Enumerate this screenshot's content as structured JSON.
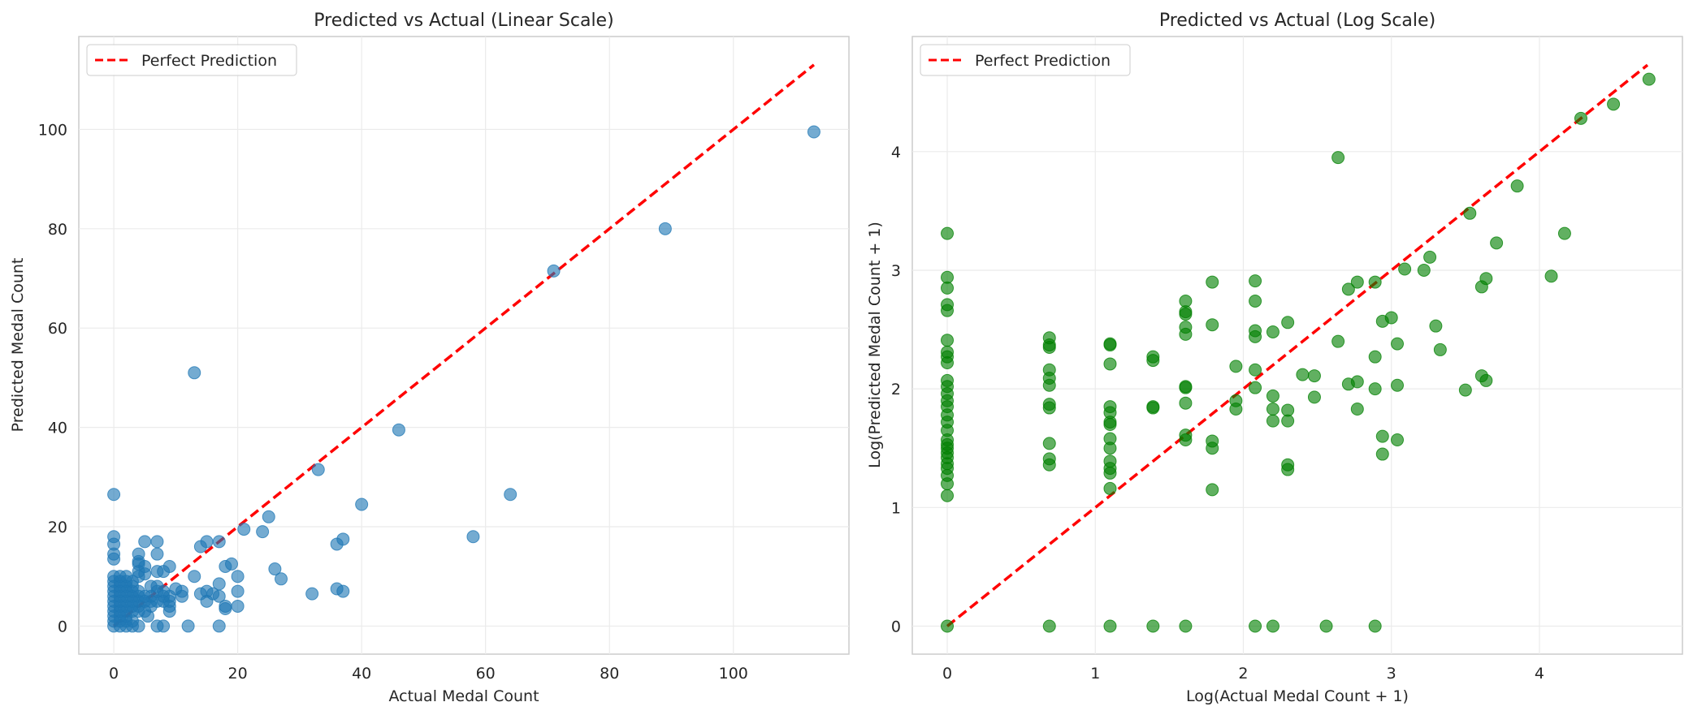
{
  "chart_data": [
    {
      "type": "scatter",
      "title": "Predicted vs Actual (Linear Scale)",
      "xlabel": "Actual Medal Count",
      "ylabel": "Predicted Medal Count",
      "xlim": [
        -5.65,
        118.65
      ],
      "ylim": [
        -5.65,
        118.7
      ],
      "xticks": [
        0,
        20,
        40,
        60,
        80,
        100
      ],
      "yticks": [
        0,
        20,
        40,
        60,
        80,
        100
      ],
      "grid": true,
      "legend": "top-left",
      "reference_line": {
        "name": "Perfect Prediction",
        "x": [
          0,
          113
        ],
        "y": [
          0,
          113
        ],
        "color": "#ff0000",
        "style": "dashed"
      },
      "point_color": "#1f77b4",
      "points": [
        [
          0,
          0
        ],
        [
          0,
          1
        ],
        [
          0,
          2
        ],
        [
          0,
          3
        ],
        [
          0,
          4
        ],
        [
          0,
          5
        ],
        [
          0,
          6
        ],
        [
          0,
          7
        ],
        [
          0,
          8
        ],
        [
          0,
          9
        ],
        [
          0,
          10
        ],
        [
          0,
          13.5
        ],
        [
          0,
          14.5
        ],
        [
          0,
          16.5
        ],
        [
          0,
          18
        ],
        [
          0,
          26.5
        ],
        [
          1,
          0
        ],
        [
          1,
          1
        ],
        [
          1,
          2
        ],
        [
          1,
          3
        ],
        [
          1,
          4
        ],
        [
          1,
          5
        ],
        [
          1,
          6
        ],
        [
          1,
          7
        ],
        [
          1,
          8
        ],
        [
          1,
          9
        ],
        [
          1,
          10
        ],
        [
          2,
          0
        ],
        [
          2,
          1
        ],
        [
          2,
          2
        ],
        [
          2,
          3
        ],
        [
          2,
          4
        ],
        [
          2,
          5
        ],
        [
          2,
          6
        ],
        [
          2,
          7
        ],
        [
          2,
          8
        ],
        [
          2,
          9
        ],
        [
          2,
          10
        ],
        [
          3,
          0
        ],
        [
          3,
          1
        ],
        [
          3,
          3
        ],
        [
          3,
          4
        ],
        [
          3,
          5
        ],
        [
          3,
          6
        ],
        [
          3,
          7
        ],
        [
          3,
          8
        ],
        [
          3,
          9
        ],
        [
          4,
          0
        ],
        [
          4,
          3
        ],
        [
          4,
          4
        ],
        [
          4,
          5
        ],
        [
          4,
          6
        ],
        [
          4,
          7
        ],
        [
          4,
          10
        ],
        [
          4,
          11
        ],
        [
          4,
          12.5
        ],
        [
          4,
          13
        ],
        [
          4,
          14.5
        ],
        [
          5,
          3
        ],
        [
          5,
          5
        ],
        [
          5,
          6
        ],
        [
          5,
          10.5
        ],
        [
          5,
          12
        ],
        [
          5,
          17
        ],
        [
          5.5,
          2
        ],
        [
          6,
          4
        ],
        [
          6,
          5
        ],
        [
          6,
          6
        ],
        [
          6,
          8
        ],
        [
          7,
          0
        ],
        [
          7,
          5
        ],
        [
          7,
          7
        ],
        [
          7,
          8
        ],
        [
          7,
          11
        ],
        [
          7,
          14.5
        ],
        [
          7,
          17
        ],
        [
          8,
          0
        ],
        [
          8,
          5
        ],
        [
          8,
          6
        ],
        [
          8,
          7
        ],
        [
          8,
          11
        ],
        [
          9,
          3
        ],
        [
          9,
          4
        ],
        [
          9,
          5
        ],
        [
          9,
          6
        ],
        [
          9,
          12
        ],
        [
          10,
          7.5
        ],
        [
          11,
          6
        ],
        [
          11,
          7
        ],
        [
          12,
          0
        ],
        [
          13,
          10
        ],
        [
          13,
          51
        ],
        [
          14,
          6.5
        ],
        [
          14,
          16
        ],
        [
          15,
          5
        ],
        [
          15,
          7
        ],
        [
          15,
          17
        ],
        [
          16,
          6.5
        ],
        [
          17,
          0
        ],
        [
          17,
          6
        ],
        [
          17,
          8.5
        ],
        [
          17,
          17
        ],
        [
          18,
          3.5
        ],
        [
          18,
          4
        ],
        [
          18,
          12
        ],
        [
          19,
          12.5
        ],
        [
          20,
          4
        ],
        [
          20,
          7
        ],
        [
          20,
          10
        ],
        [
          21,
          19.5
        ],
        [
          24,
          19
        ],
        [
          25,
          22
        ],
        [
          26,
          11.5
        ],
        [
          27,
          9.5
        ],
        [
          32,
          6.5
        ],
        [
          33,
          31.5
        ],
        [
          36,
          7.5
        ],
        [
          36,
          16.5
        ],
        [
          37,
          7
        ],
        [
          37,
          17.5
        ],
        [
          40,
          24.5
        ],
        [
          46,
          39.5
        ],
        [
          58,
          18
        ],
        [
          64,
          26.5
        ],
        [
          71,
          71.5
        ],
        [
          89,
          80
        ],
        [
          113,
          99.5
        ]
      ]
    },
    {
      "type": "scatter",
      "title": "Predicted vs Actual (Log Scale)",
      "xlabel": "Log(Actual Medal Count + 1)",
      "ylabel": "Log(Predicted Medal Count + 1)",
      "xlim": [
        -0.236,
        4.966
      ],
      "ylim": [
        -0.236,
        4.97
      ],
      "xticks": [
        0,
        1,
        2,
        3,
        4
      ],
      "yticks": [
        0,
        1,
        2,
        3,
        4
      ],
      "grid": true,
      "legend": "top-left",
      "reference_line": {
        "name": "Perfect Prediction",
        "x": [
          0,
          4.73
        ],
        "y": [
          0,
          4.73
        ],
        "color": "#ff0000",
        "style": "dashed"
      },
      "point_color": "#008000",
      "points": [
        [
          0,
          0
        ],
        [
          0,
          1.1
        ],
        [
          0,
          1.2
        ],
        [
          0,
          1.27
        ],
        [
          0,
          1.33
        ],
        [
          0,
          1.37
        ],
        [
          0,
          1.42
        ],
        [
          0,
          1.46
        ],
        [
          0,
          1.5
        ],
        [
          0,
          1.53
        ],
        [
          0,
          1.57
        ],
        [
          0,
          1.65
        ],
        [
          0,
          1.72
        ],
        [
          0,
          1.78
        ],
        [
          0,
          1.85
        ],
        [
          0,
          1.9
        ],
        [
          0,
          1.96
        ],
        [
          0,
          2.02
        ],
        [
          0,
          2.07
        ],
        [
          0,
          2.22
        ],
        [
          0,
          2.27
        ],
        [
          0,
          2.31
        ],
        [
          0,
          2.41
        ],
        [
          0,
          2.66
        ],
        [
          0,
          2.71
        ],
        [
          0,
          2.85
        ],
        [
          0,
          2.94
        ],
        [
          0,
          3.31
        ],
        [
          0.69,
          0
        ],
        [
          0.69,
          1.36
        ],
        [
          0.69,
          1.41
        ],
        [
          0.69,
          1.54
        ],
        [
          0.69,
          1.84
        ],
        [
          0.69,
          1.87
        ],
        [
          0.69,
          2.03
        ],
        [
          0.69,
          2.09
        ],
        [
          0.69,
          2.16
        ],
        [
          0.69,
          2.35
        ],
        [
          0.69,
          2.37
        ],
        [
          0.69,
          2.43
        ],
        [
          1.1,
          0
        ],
        [
          1.1,
          1.16
        ],
        [
          1.1,
          1.29
        ],
        [
          1.1,
          1.33
        ],
        [
          1.1,
          1.39
        ],
        [
          1.1,
          1.5
        ],
        [
          1.1,
          1.58
        ],
        [
          1.1,
          1.7
        ],
        [
          1.1,
          1.72
        ],
        [
          1.1,
          1.8
        ],
        [
          1.1,
          1.85
        ],
        [
          1.1,
          2.21
        ],
        [
          1.1,
          2.37
        ],
        [
          1.1,
          2.38
        ],
        [
          1.39,
          0
        ],
        [
          1.39,
          1.84
        ],
        [
          1.39,
          1.85
        ],
        [
          1.39,
          2.24
        ],
        [
          1.39,
          2.27
        ],
        [
          1.61,
          0
        ],
        [
          1.61,
          1.57
        ],
        [
          1.61,
          1.61
        ],
        [
          1.61,
          1.88
        ],
        [
          1.61,
          2.01
        ],
        [
          1.61,
          2.02
        ],
        [
          1.61,
          2.46
        ],
        [
          1.61,
          2.52
        ],
        [
          1.61,
          2.63
        ],
        [
          1.61,
          2.65
        ],
        [
          1.61,
          2.74
        ],
        [
          1.79,
          1.15
        ],
        [
          1.79,
          1.5
        ],
        [
          1.79,
          1.56
        ],
        [
          1.79,
          2.54
        ],
        [
          1.79,
          2.9
        ],
        [
          1.95,
          1.83
        ],
        [
          1.95,
          1.9
        ],
        [
          1.95,
          2.19
        ],
        [
          2.08,
          0
        ],
        [
          2.08,
          2.01
        ],
        [
          2.08,
          2.16
        ],
        [
          2.08,
          2.44
        ],
        [
          2.08,
          2.49
        ],
        [
          2.08,
          2.74
        ],
        [
          2.08,
          2.91
        ],
        [
          2.2,
          0
        ],
        [
          2.2,
          1.73
        ],
        [
          2.2,
          1.83
        ],
        [
          2.2,
          1.94
        ],
        [
          2.2,
          2.48
        ],
        [
          2.3,
          1.32
        ],
        [
          2.3,
          1.36
        ],
        [
          2.3,
          1.73
        ],
        [
          2.3,
          1.82
        ],
        [
          2.3,
          2.56
        ],
        [
          2.4,
          2.12
        ],
        [
          2.48,
          1.93
        ],
        [
          2.48,
          2.11
        ],
        [
          2.56,
          0
        ],
        [
          2.64,
          2.4
        ],
        [
          2.64,
          3.95
        ],
        [
          2.71,
          2.04
        ],
        [
          2.71,
          2.84
        ],
        [
          2.77,
          1.83
        ],
        [
          2.77,
          2.06
        ],
        [
          2.77,
          2.9
        ],
        [
          2.89,
          0
        ],
        [
          2.89,
          2.0
        ],
        [
          2.89,
          2.27
        ],
        [
          2.89,
          2.9
        ],
        [
          2.94,
          1.45
        ],
        [
          2.94,
          1.6
        ],
        [
          2.94,
          2.57
        ],
        [
          3.0,
          2.6
        ],
        [
          3.04,
          1.57
        ],
        [
          3.04,
          2.03
        ],
        [
          3.04,
          2.38
        ],
        [
          3.09,
          3.01
        ],
        [
          3.22,
          3.0
        ],
        [
          3.26,
          3.11
        ],
        [
          3.3,
          2.53
        ],
        [
          3.33,
          2.33
        ],
        [
          3.5,
          1.99
        ],
        [
          3.53,
          3.48
        ],
        [
          3.61,
          2.11
        ],
        [
          3.61,
          2.86
        ],
        [
          3.64,
          2.07
        ],
        [
          3.64,
          2.93
        ],
        [
          3.71,
          3.23
        ],
        [
          3.85,
          3.71
        ],
        [
          4.08,
          2.95
        ],
        [
          4.17,
          3.31
        ],
        [
          4.28,
          4.28
        ],
        [
          4.5,
          4.4
        ],
        [
          4.74,
          4.61
        ]
      ]
    }
  ]
}
